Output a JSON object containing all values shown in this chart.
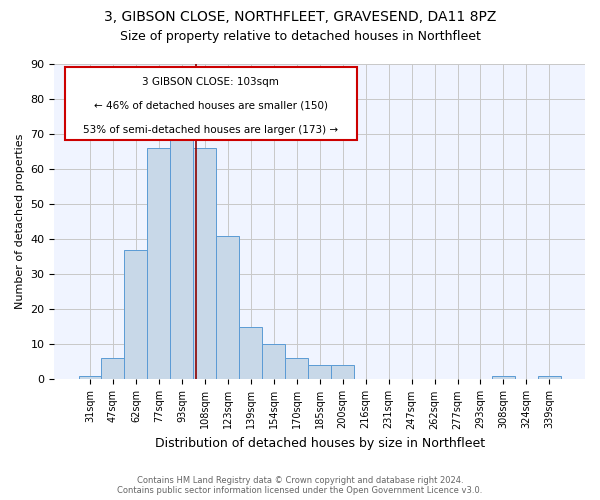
{
  "title": "3, GIBSON CLOSE, NORTHFLEET, GRAVESEND, DA11 8PZ",
  "subtitle": "Size of property relative to detached houses in Northfleet",
  "xlabel": "Distribution of detached houses by size in Northfleet",
  "ylabel": "Number of detached properties",
  "footer1": "Contains HM Land Registry data © Crown copyright and database right 2024.",
  "footer2": "Contains public sector information licensed under the Open Government Licence v3.0.",
  "annotation_line1": "3 GIBSON CLOSE: 103sqm",
  "annotation_line2": "← 46% of detached houses are smaller (150)",
  "annotation_line3": "53% of semi-detached houses are larger (173) →",
  "bar_labels": [
    "31sqm",
    "47sqm",
    "62sqm",
    "77sqm",
    "93sqm",
    "108sqm",
    "123sqm",
    "139sqm",
    "154sqm",
    "170sqm",
    "185sqm",
    "200sqm",
    "216sqm",
    "231sqm",
    "247sqm",
    "262sqm",
    "277sqm",
    "293sqm",
    "308sqm",
    "324sqm",
    "339sqm"
  ],
  "bar_values": [
    1,
    6,
    37,
    66,
    70,
    66,
    41,
    15,
    10,
    6,
    4,
    4,
    0,
    0,
    0,
    0,
    0,
    0,
    1,
    0,
    1
  ],
  "bar_color": "#c8d8e8",
  "bar_edgecolor": "#5b9bd5",
  "vline_x": 4.6,
  "vline_color": "#8b0000",
  "ylim": [
    0,
    90
  ],
  "yticks": [
    0,
    10,
    20,
    30,
    40,
    50,
    60,
    70,
    80,
    90
  ],
  "grid_color": "#c8c8c8",
  "bg_color": "#f0f4ff",
  "annotation_box_color": "#cc0000",
  "title_fontsize": 10,
  "subtitle_fontsize": 9
}
